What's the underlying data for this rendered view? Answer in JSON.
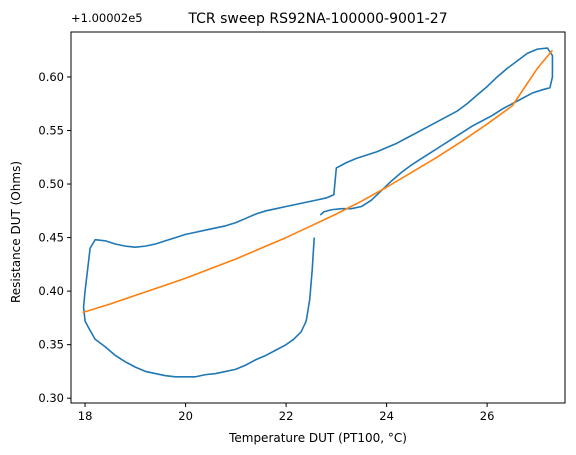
{
  "chart_data": {
    "type": "line",
    "title": "TCR sweep RS92NA-100000-9001-27",
    "xlabel": "Temperature DUT (PT100, °C)",
    "ylabel": "Resistance DUT (Ohms)",
    "offset_text": "+1.00002e5",
    "xlim": [
      17.72,
      27.55
    ],
    "ylim": [
      0.2955,
      0.642
    ],
    "xticks": [
      18,
      20,
      22,
      24,
      26
    ],
    "xtick_labels": [
      "18",
      "20",
      "22",
      "24",
      "26"
    ],
    "yticks": [
      0.3,
      0.35,
      0.4,
      0.45,
      0.5,
      0.55,
      0.6
    ],
    "ytick_labels": [
      "0.30",
      "0.35",
      "0.40",
      "0.45",
      "0.50",
      "0.55",
      "0.60"
    ],
    "grid": false,
    "colors": {
      "measured": "#1f77b4",
      "fit": "#ff7f0e"
    },
    "series": [
      {
        "kind": "measured",
        "points": [
          [
            22.56,
            0.45
          ],
          [
            22.52,
            0.42
          ],
          [
            22.47,
            0.392
          ],
          [
            22.4,
            0.372
          ],
          [
            22.3,
            0.362
          ],
          [
            22.15,
            0.355
          ],
          [
            22.0,
            0.35
          ],
          [
            21.8,
            0.345
          ],
          [
            21.6,
            0.34
          ],
          [
            21.4,
            0.336
          ],
          [
            21.2,
            0.331
          ],
          [
            21.0,
            0.327
          ],
          [
            20.8,
            0.325
          ],
          [
            20.6,
            0.323
          ],
          [
            20.4,
            0.322
          ],
          [
            20.2,
            0.32
          ],
          [
            20.0,
            0.32
          ],
          [
            19.8,
            0.32
          ],
          [
            19.6,
            0.321
          ],
          [
            19.4,
            0.323
          ],
          [
            19.2,
            0.325
          ],
          [
            19.0,
            0.329
          ],
          [
            18.8,
            0.334
          ],
          [
            18.6,
            0.34
          ],
          [
            18.4,
            0.348
          ],
          [
            18.2,
            0.355
          ],
          [
            18.08,
            0.365
          ],
          [
            18.0,
            0.372
          ],
          [
            17.97,
            0.385
          ],
          [
            18.0,
            0.4
          ],
          [
            18.05,
            0.42
          ],
          [
            18.1,
            0.44
          ],
          [
            18.2,
            0.448
          ],
          [
            18.4,
            0.447
          ],
          [
            18.6,
            0.444
          ],
          [
            18.8,
            0.442
          ],
          [
            19.0,
            0.441
          ],
          [
            19.2,
            0.442
          ],
          [
            19.4,
            0.444
          ],
          [
            19.6,
            0.447
          ],
          [
            19.8,
            0.45
          ],
          [
            20.0,
            0.453
          ],
          [
            20.2,
            0.455
          ],
          [
            20.4,
            0.457
          ],
          [
            20.6,
            0.459
          ],
          [
            20.8,
            0.461
          ],
          [
            21.0,
            0.464
          ],
          [
            21.2,
            0.468
          ],
          [
            21.4,
            0.472
          ],
          [
            21.6,
            0.475
          ],
          [
            21.8,
            0.477
          ],
          [
            22.0,
            0.479
          ],
          [
            22.2,
            0.481
          ],
          [
            22.4,
            0.483
          ],
          [
            22.6,
            0.485
          ],
          [
            22.8,
            0.487
          ],
          [
            22.95,
            0.49
          ],
          [
            23.0,
            0.515
          ],
          [
            23.2,
            0.52
          ],
          [
            23.4,
            0.524
          ],
          [
            23.6,
            0.527
          ],
          [
            23.8,
            0.53
          ],
          [
            24.0,
            0.534
          ],
          [
            24.2,
            0.538
          ],
          [
            24.4,
            0.543
          ],
          [
            24.6,
            0.548
          ],
          [
            24.8,
            0.553
          ],
          [
            25.0,
            0.558
          ],
          [
            25.2,
            0.563
          ],
          [
            25.4,
            0.568
          ],
          [
            25.6,
            0.575
          ],
          [
            25.8,
            0.583
          ],
          [
            26.0,
            0.591
          ],
          [
            26.2,
            0.6
          ],
          [
            26.4,
            0.608
          ],
          [
            26.6,
            0.615
          ],
          [
            26.8,
            0.622
          ],
          [
            27.0,
            0.626
          ],
          [
            27.2,
            0.627
          ],
          [
            27.3,
            0.62
          ],
          [
            27.3,
            0.6
          ],
          [
            27.25,
            0.59
          ],
          [
            27.1,
            0.588
          ],
          [
            26.9,
            0.585
          ],
          [
            26.7,
            0.58
          ],
          [
            26.5,
            0.575
          ],
          [
            26.3,
            0.57
          ],
          [
            26.1,
            0.564
          ],
          [
            25.9,
            0.559
          ],
          [
            25.7,
            0.554
          ],
          [
            25.5,
            0.548
          ],
          [
            25.3,
            0.542
          ],
          [
            25.1,
            0.536
          ],
          [
            24.9,
            0.53
          ],
          [
            24.7,
            0.524
          ],
          [
            24.5,
            0.518
          ],
          [
            24.3,
            0.511
          ],
          [
            24.1,
            0.503
          ],
          [
            23.9,
            0.494
          ],
          [
            23.7,
            0.485
          ],
          [
            23.5,
            0.479
          ],
          [
            23.3,
            0.477
          ],
          [
            23.1,
            0.477
          ],
          [
            22.9,
            0.476
          ],
          [
            22.75,
            0.474
          ],
          [
            22.68,
            0.471
          ]
        ]
      },
      {
        "kind": "fit",
        "x": [
          17.95,
          18.5,
          19.0,
          19.5,
          20.0,
          20.5,
          21.0,
          21.5,
          22.0,
          22.5,
          23.0,
          23.5,
          24.0,
          24.5,
          25.0,
          25.5,
          26.0,
          26.5,
          27.0,
          27.3
        ],
        "y": [
          0.38,
          0.388,
          0.396,
          0.404,
          0.412,
          0.421,
          0.43,
          0.44,
          0.45,
          0.461,
          0.472,
          0.484,
          0.497,
          0.511,
          0.525,
          0.54,
          0.556,
          0.573,
          0.608,
          0.625
        ]
      }
    ]
  }
}
